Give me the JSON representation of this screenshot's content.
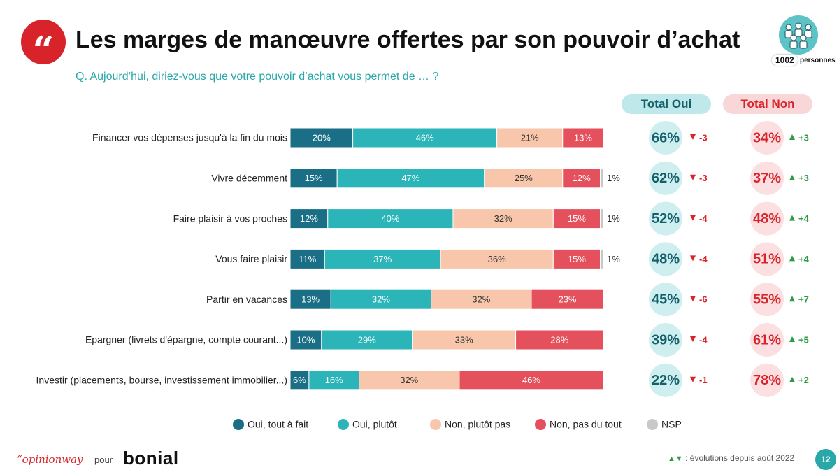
{
  "header": {
    "title": "Les marges de manœuvre offertes par son pouvoir d’achat",
    "question": "Q. Aujourd’hui, diriez-vous que votre pouvoir d’achat vous permet de … ?",
    "sample_count": "1002",
    "sample_label": "personnes"
  },
  "columns": {
    "total_oui": "Total Oui",
    "total_non": "Total Non"
  },
  "chart_data": {
    "type": "bar",
    "orientation": "horizontal",
    "stacked": true,
    "categories": [
      "Financer vos dépenses jusqu'à la fin du mois",
      "Vivre décemment",
      "Faire plaisir à vos proches",
      "Vous faire plaisir",
      "Partir en vacances",
      "Epargner (livrets d'épargne, compte courant...)",
      "Investir (placements, bourse, investissement immobilier...)"
    ],
    "series": [
      {
        "name": "Oui, tout à fait",
        "color": "#1a6e86",
        "values": [
          20,
          15,
          12,
          11,
          13,
          10,
          6
        ]
      },
      {
        "name": "Oui, plutôt",
        "color": "#2bb5b8",
        "values": [
          46,
          47,
          40,
          37,
          32,
          29,
          16
        ]
      },
      {
        "name": "Non, plutôt pas",
        "color": "#f7c6ab",
        "values": [
          21,
          25,
          32,
          36,
          32,
          33,
          32
        ]
      },
      {
        "name": "Non, pas du tout",
        "color": "#e4505c",
        "values": [
          13,
          12,
          15,
          15,
          23,
          28,
          46
        ]
      },
      {
        "name": "NSP",
        "color": "#c8c8c8",
        "values": [
          0,
          1,
          1,
          1,
          0,
          0,
          0
        ]
      }
    ],
    "value_suffix": "%",
    "total_oui": [
      "66%",
      "62%",
      "52%",
      "48%",
      "45%",
      "39%",
      "22%"
    ],
    "total_oui_evolution": [
      "-3",
      "-3",
      "-4",
      "-4",
      "-6",
      "-4",
      "-1"
    ],
    "total_non": [
      "34%",
      "37%",
      "48%",
      "51%",
      "55%",
      "61%",
      "78%"
    ],
    "total_non_evolution": [
      "+3",
      "+3",
      "+4",
      "+4",
      "+7",
      "+5",
      "+2"
    ],
    "xlim": [
      0,
      100
    ]
  },
  "colors": {
    "brand_red": "#d8232a",
    "teal": "#2aa7a9",
    "oui_circle": "#cfeef0",
    "non_circle": "#fbdfe1",
    "oui_text": "#13606a",
    "down_arrow": "#d8232a",
    "up_arrow": "#2e9a45"
  },
  "footer": {
    "brand": "“opinionway",
    "pour": "pour",
    "client": "bonial",
    "evolution_arrows": "▲▼",
    "evolution_note": " : évolutions depuis août 2022",
    "page": "12"
  }
}
